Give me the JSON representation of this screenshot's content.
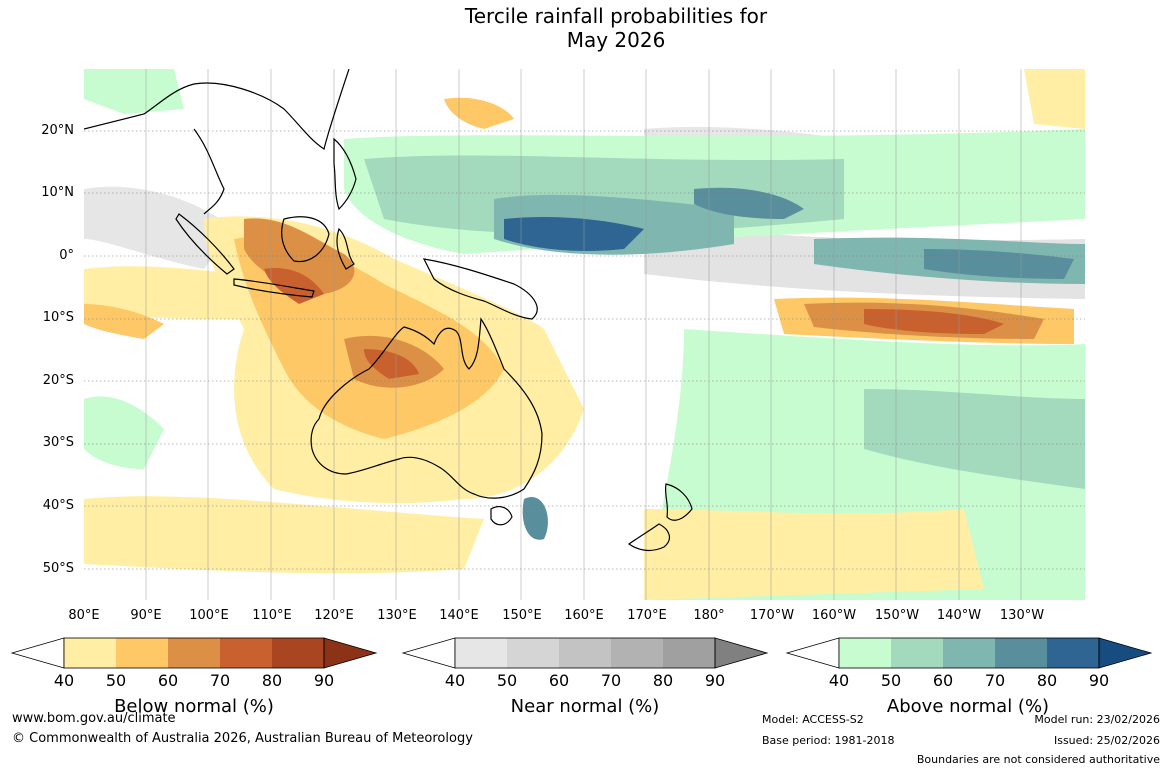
{
  "title_line1": "Tercile rainfall probabilities for",
  "title_line2": "May 2026",
  "lat_labels": [
    "20°N",
    "10°N",
    "0°",
    "10°S",
    "20°S",
    "30°S",
    "40°S",
    "50°S"
  ],
  "lon_labels": [
    "80°E",
    "90°E",
    "100°E",
    "110°E",
    "120°E",
    "130°E",
    "140°E",
    "150°E",
    "160°E",
    "170°E",
    "180°",
    "170°W",
    "160°W",
    "150°W",
    "140°W",
    "130°W"
  ],
  "colorbars": [
    {
      "title": "Below normal (%)",
      "ticks": [
        "40",
        "50",
        "60",
        "70",
        "80",
        "90"
      ],
      "colors": [
        "#ffeea3",
        "#fdc865",
        "#dc9045",
        "#c9612e",
        "#a94621"
      ],
      "extend": "#8c3217"
    },
    {
      "title": "Near normal (%)",
      "ticks": [
        "40",
        "50",
        "60",
        "70",
        "80",
        "90"
      ],
      "colors": [
        "#e6e6e6",
        "#d5d5d5",
        "#c3c3c3",
        "#b2b2b2",
        "#a0a0a0"
      ],
      "extend": "#808080"
    },
    {
      "title": "Above normal (%)",
      "ticks": [
        "40",
        "50",
        "60",
        "70",
        "80",
        "90"
      ],
      "colors": [
        "#c7fcd0",
        "#a3d9bd",
        "#80b6b0",
        "#598f9c",
        "#2f6592"
      ],
      "extend": "#174c80"
    }
  ],
  "footer": {
    "url": "www.bom.gov.au/climate",
    "copyright": "© Commonwealth of Australia 2026, Australian Bureau of Meteorology",
    "model": "Model: ACCESS-S2",
    "base_period": "Base period: 1981-2018",
    "model_run": "Model run: 23/02/2026",
    "issued": "Issued: 25/02/2026",
    "disclaimer": "Boundaries are not considered authoritative"
  }
}
